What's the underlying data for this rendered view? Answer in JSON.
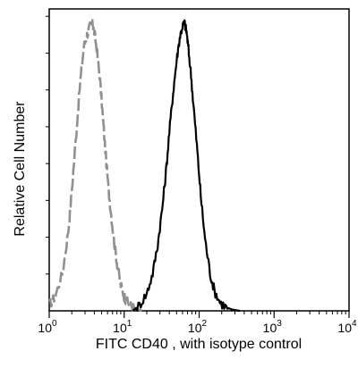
{
  "chart_data": {
    "type": "line",
    "title": "",
    "xlabel": "FITC  CD40 , with isotype control",
    "ylabel": "Relative Cell Number",
    "x_scale": "log",
    "xlim": [
      1,
      10000
    ],
    "ylim": [
      0,
      1.05
    ],
    "grid": false,
    "legend": "none",
    "tick_labels": [
      {
        "base": "10",
        "exp": "0",
        "value": 1
      },
      {
        "base": "10",
        "exp": "1",
        "value": 10
      },
      {
        "base": "10",
        "exp": "2",
        "value": 100
      },
      {
        "base": "10",
        "exp": "3",
        "value": 1000
      },
      {
        "base": "10",
        "exp": "4",
        "value": 10000
      }
    ],
    "series": [
      {
        "style": "dashed",
        "color": "#909090",
        "x": [
          1.0,
          1.2,
          1.5,
          1.8,
          2.0,
          2.3,
          2.6,
          2.9,
          3.2,
          3.5,
          3.8,
          4.0,
          4.3,
          4.7,
          5.1,
          5.6,
          6.2,
          6.8,
          7.5,
          8.2,
          9.0,
          10.0,
          11.0,
          12.5,
          14.0,
          16.0,
          18.0
        ],
        "y": [
          0.02,
          0.05,
          0.13,
          0.28,
          0.42,
          0.62,
          0.8,
          0.92,
          0.96,
          0.99,
          1.0,
          0.97,
          0.91,
          0.82,
          0.7,
          0.56,
          0.42,
          0.32,
          0.22,
          0.15,
          0.09,
          0.05,
          0.03,
          0.015,
          0.008,
          0.003,
          0.0
        ]
      },
      {
        "style": "solid",
        "color": "#000000",
        "x": [
          13.0,
          16.0,
          20.0,
          24.0,
          28.0,
          32.0,
          36.0,
          40.0,
          45.0,
          50.0,
          55.0,
          60.0,
          64.0,
          68.0,
          72.0,
          78.0,
          85.0,
          95.0,
          105.0,
          120.0,
          140.0,
          160.0,
          190.0,
          230.0,
          280.0,
          350.0
        ],
        "y": [
          0.0,
          0.02,
          0.06,
          0.13,
          0.23,
          0.35,
          0.48,
          0.62,
          0.76,
          0.87,
          0.95,
          0.99,
          1.0,
          0.97,
          0.91,
          0.82,
          0.7,
          0.55,
          0.4,
          0.25,
          0.13,
          0.07,
          0.03,
          0.012,
          0.004,
          0.0
        ]
      }
    ]
  }
}
